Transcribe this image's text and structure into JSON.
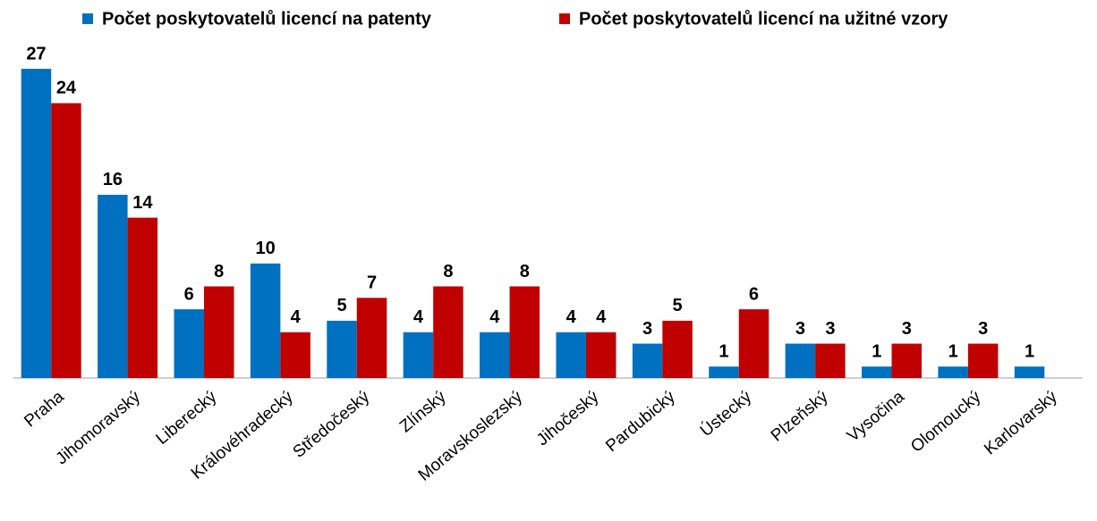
{
  "chart_data": {
    "type": "bar",
    "categories": [
      "Praha",
      "Jihomoravský",
      "Liberecký",
      "Královéhradecký",
      "Středočeský",
      "Zlínský",
      "Moravskoslezský",
      "Jihočeský",
      "Pardubický",
      "Ústecký",
      "Plzeňský",
      "Vysočina",
      "Olomoucký",
      "Karlovarský"
    ],
    "series": [
      {
        "name": "Počet poskytovatelů licencí na patenty",
        "color": "#0070c0",
        "values": [
          27,
          16,
          6,
          10,
          5,
          4,
          4,
          4,
          3,
          1,
          3,
          1,
          1,
          1
        ]
      },
      {
        "name": "Počet poskytovatelů licencí na užitné vzory",
        "color": "#c00000",
        "values": [
          24,
          14,
          8,
          4,
          7,
          8,
          8,
          4,
          5,
          6,
          3,
          3,
          3,
          null
        ]
      }
    ],
    "legend": "top"
  }
}
